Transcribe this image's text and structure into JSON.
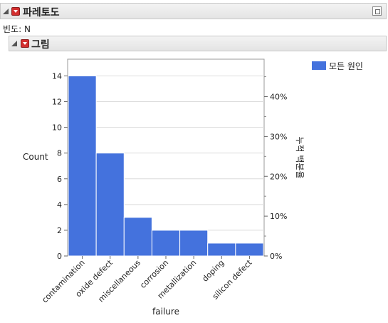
{
  "report": {
    "title": "파레토도",
    "frequency_label": "빈도: N",
    "section_title": "그림"
  },
  "chart_data": {
    "type": "bar",
    "categories": [
      "contamination",
      "oxide defect",
      "miscellaneous",
      "corrosion",
      "metallization",
      "doping",
      "silicon defect"
    ],
    "series": [
      {
        "name": "모든 원인",
        "values": [
          14,
          8,
          3,
          2,
          2,
          1,
          1
        ]
      }
    ],
    "xlabel": "failure",
    "ylabel": "Count",
    "y2label": "누적 백분율",
    "ylim": [
      0,
      15.3
    ],
    "y_ticks": [
      0,
      2,
      4,
      6,
      8,
      10,
      12,
      14
    ],
    "y2_ticks": [
      "0%",
      "10%",
      "20%",
      "30%",
      "40%"
    ],
    "y2_tick_values": [
      0,
      10,
      20,
      30,
      40
    ],
    "y2lim": [
      0,
      49.4
    ],
    "bar_color": "#4472dd",
    "grid": true,
    "legend": "top-right"
  }
}
